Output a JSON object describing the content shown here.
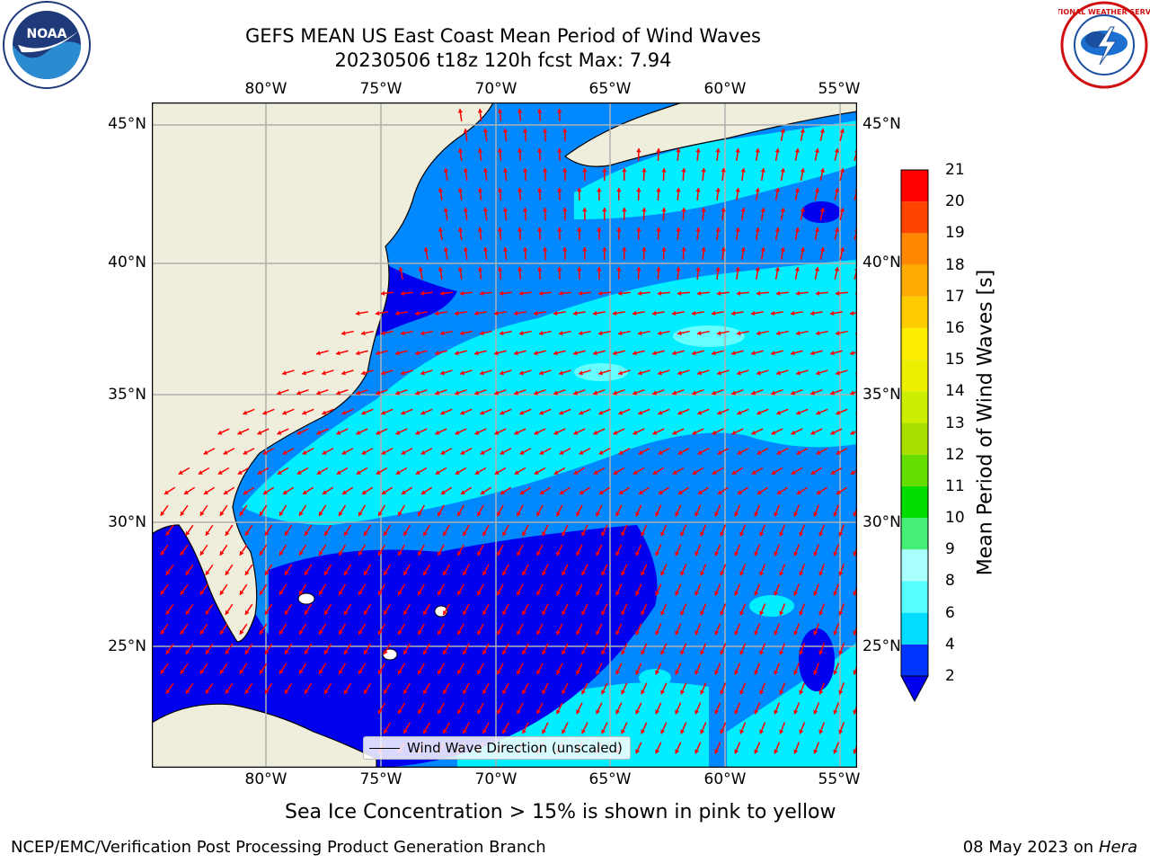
{
  "header": {
    "title_line1": "GEFS MEAN US East Coast Mean Period of Wind Waves",
    "title_line2": "20230506 t18z 120h fcst   Max: 7.94"
  },
  "logos": {
    "left": "NOAA",
    "right": "NATIONAL WEATHER SERVICE"
  },
  "map": {
    "region": "US East Coast / Western North Atlantic",
    "lon_ticks": [
      "80°W",
      "75°W",
      "70°W",
      "65°W",
      "60°W",
      "55°W"
    ],
    "lat_ticks": [
      "45°N",
      "40°N",
      "35°N",
      "30°N",
      "25°N"
    ],
    "lon_range": [
      -85,
      -54.5
    ],
    "lat_range": [
      20.5,
      46
    ],
    "gridlines": true,
    "legend_label": "Wind Wave Direction (unscaled)",
    "arrow_color": "#ff0000",
    "land_color": "#efeedc"
  },
  "colorbar": {
    "label": "Mean Period of Wind Waves [s]",
    "levels": [
      "2",
      "4",
      "6",
      "8",
      "9",
      "10",
      "11",
      "12",
      "13",
      "14",
      "15",
      "16",
      "17",
      "18",
      "19",
      "20",
      "21"
    ],
    "colors": [
      "#0033ff",
      "#0088ff",
      "#00ddff",
      "#55ffff",
      "#aaffff",
      "#44ee77",
      "#00dd00",
      "#66dd00",
      "#aae000",
      "#ccee00",
      "#eeee00",
      "#ffee00",
      "#ffcc00",
      "#ffaa00",
      "#ff8800",
      "#ff4400",
      "#ff0000"
    ],
    "underflow_color": "#0000ee"
  },
  "footer": {
    "note": "Sea Ice Concentration > 15% is shown in pink to yellow",
    "left": "NCEP/EMC/Verification Post Processing Product Generation Branch",
    "date": "08 May 2023 on",
    "machine": "Hera"
  }
}
